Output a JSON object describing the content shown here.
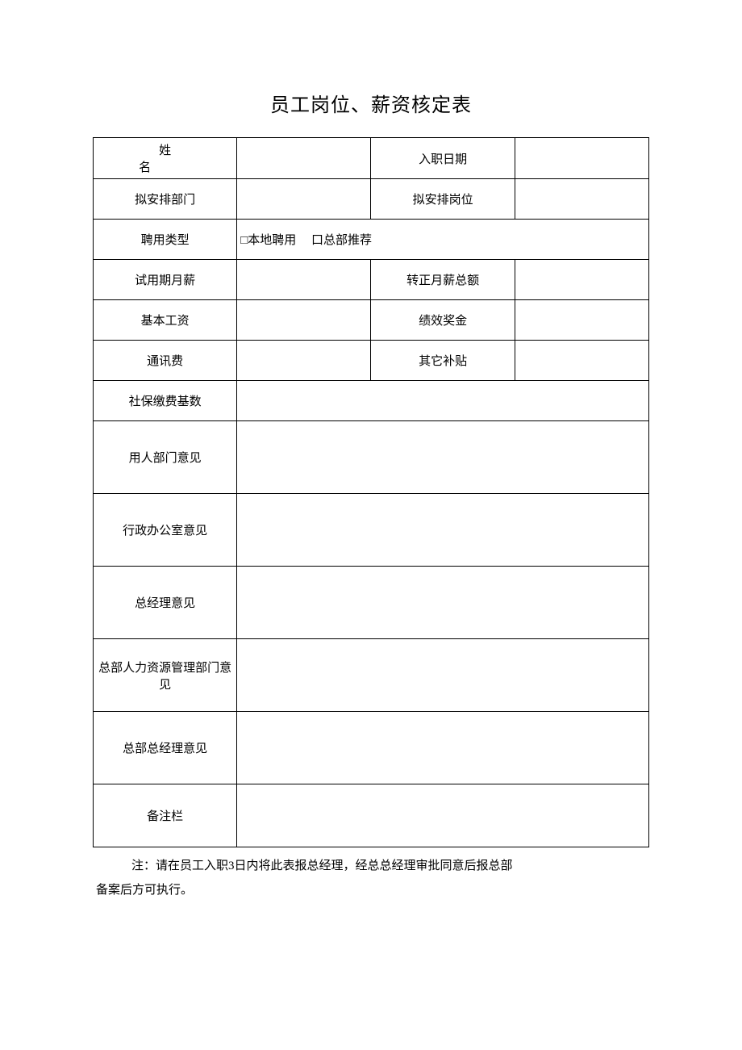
{
  "title": "员工岗位、薪资核定表",
  "labels": {
    "name": "姓名",
    "entry_date": "入职日期",
    "department": "拟安排部门",
    "position": "拟安排岗位",
    "employment_type": "聘用类型",
    "local_hire": "□本地聘用",
    "hq_recommend": "口总部推荐",
    "probation_salary": "试用期月薪",
    "regular_salary": "转正月薪总额",
    "base_salary": "基本工资",
    "performance_bonus": "绩效奖金",
    "communication_fee": "通讯费",
    "other_allowance": "其它补贴",
    "social_insurance_base": "社保缴费基数",
    "hiring_dept_opinion": "用人部门意见",
    "admin_office_opinion": "行政办公室意见",
    "gm_opinion": "总经理意见",
    "hq_hr_opinion": "总部人力资源管理部门意见",
    "hq_gm_opinion": "总部总经理意见",
    "remarks": "备注栏"
  },
  "values": {
    "name": "",
    "entry_date": "",
    "department": "",
    "position": "",
    "probation_salary": "",
    "regular_salary": "",
    "base_salary": "",
    "performance_bonus": "",
    "communication_fee": "",
    "other_allowance": "",
    "social_insurance_base": "",
    "hiring_dept_opinion": "",
    "admin_office_opinion": "",
    "gm_opinion": "",
    "hq_hr_opinion": "",
    "hq_gm_opinion": "",
    "remarks": ""
  },
  "footnote_line1": "注：请在员工入职3日内将此表报总经理，经总总经理审批同意后报总部",
  "footnote_line2": "备案后方可执行。",
  "style": {
    "border_color": "#000000",
    "background_color": "#ffffff",
    "title_fontsize": 24,
    "cell_fontsize": 15
  }
}
